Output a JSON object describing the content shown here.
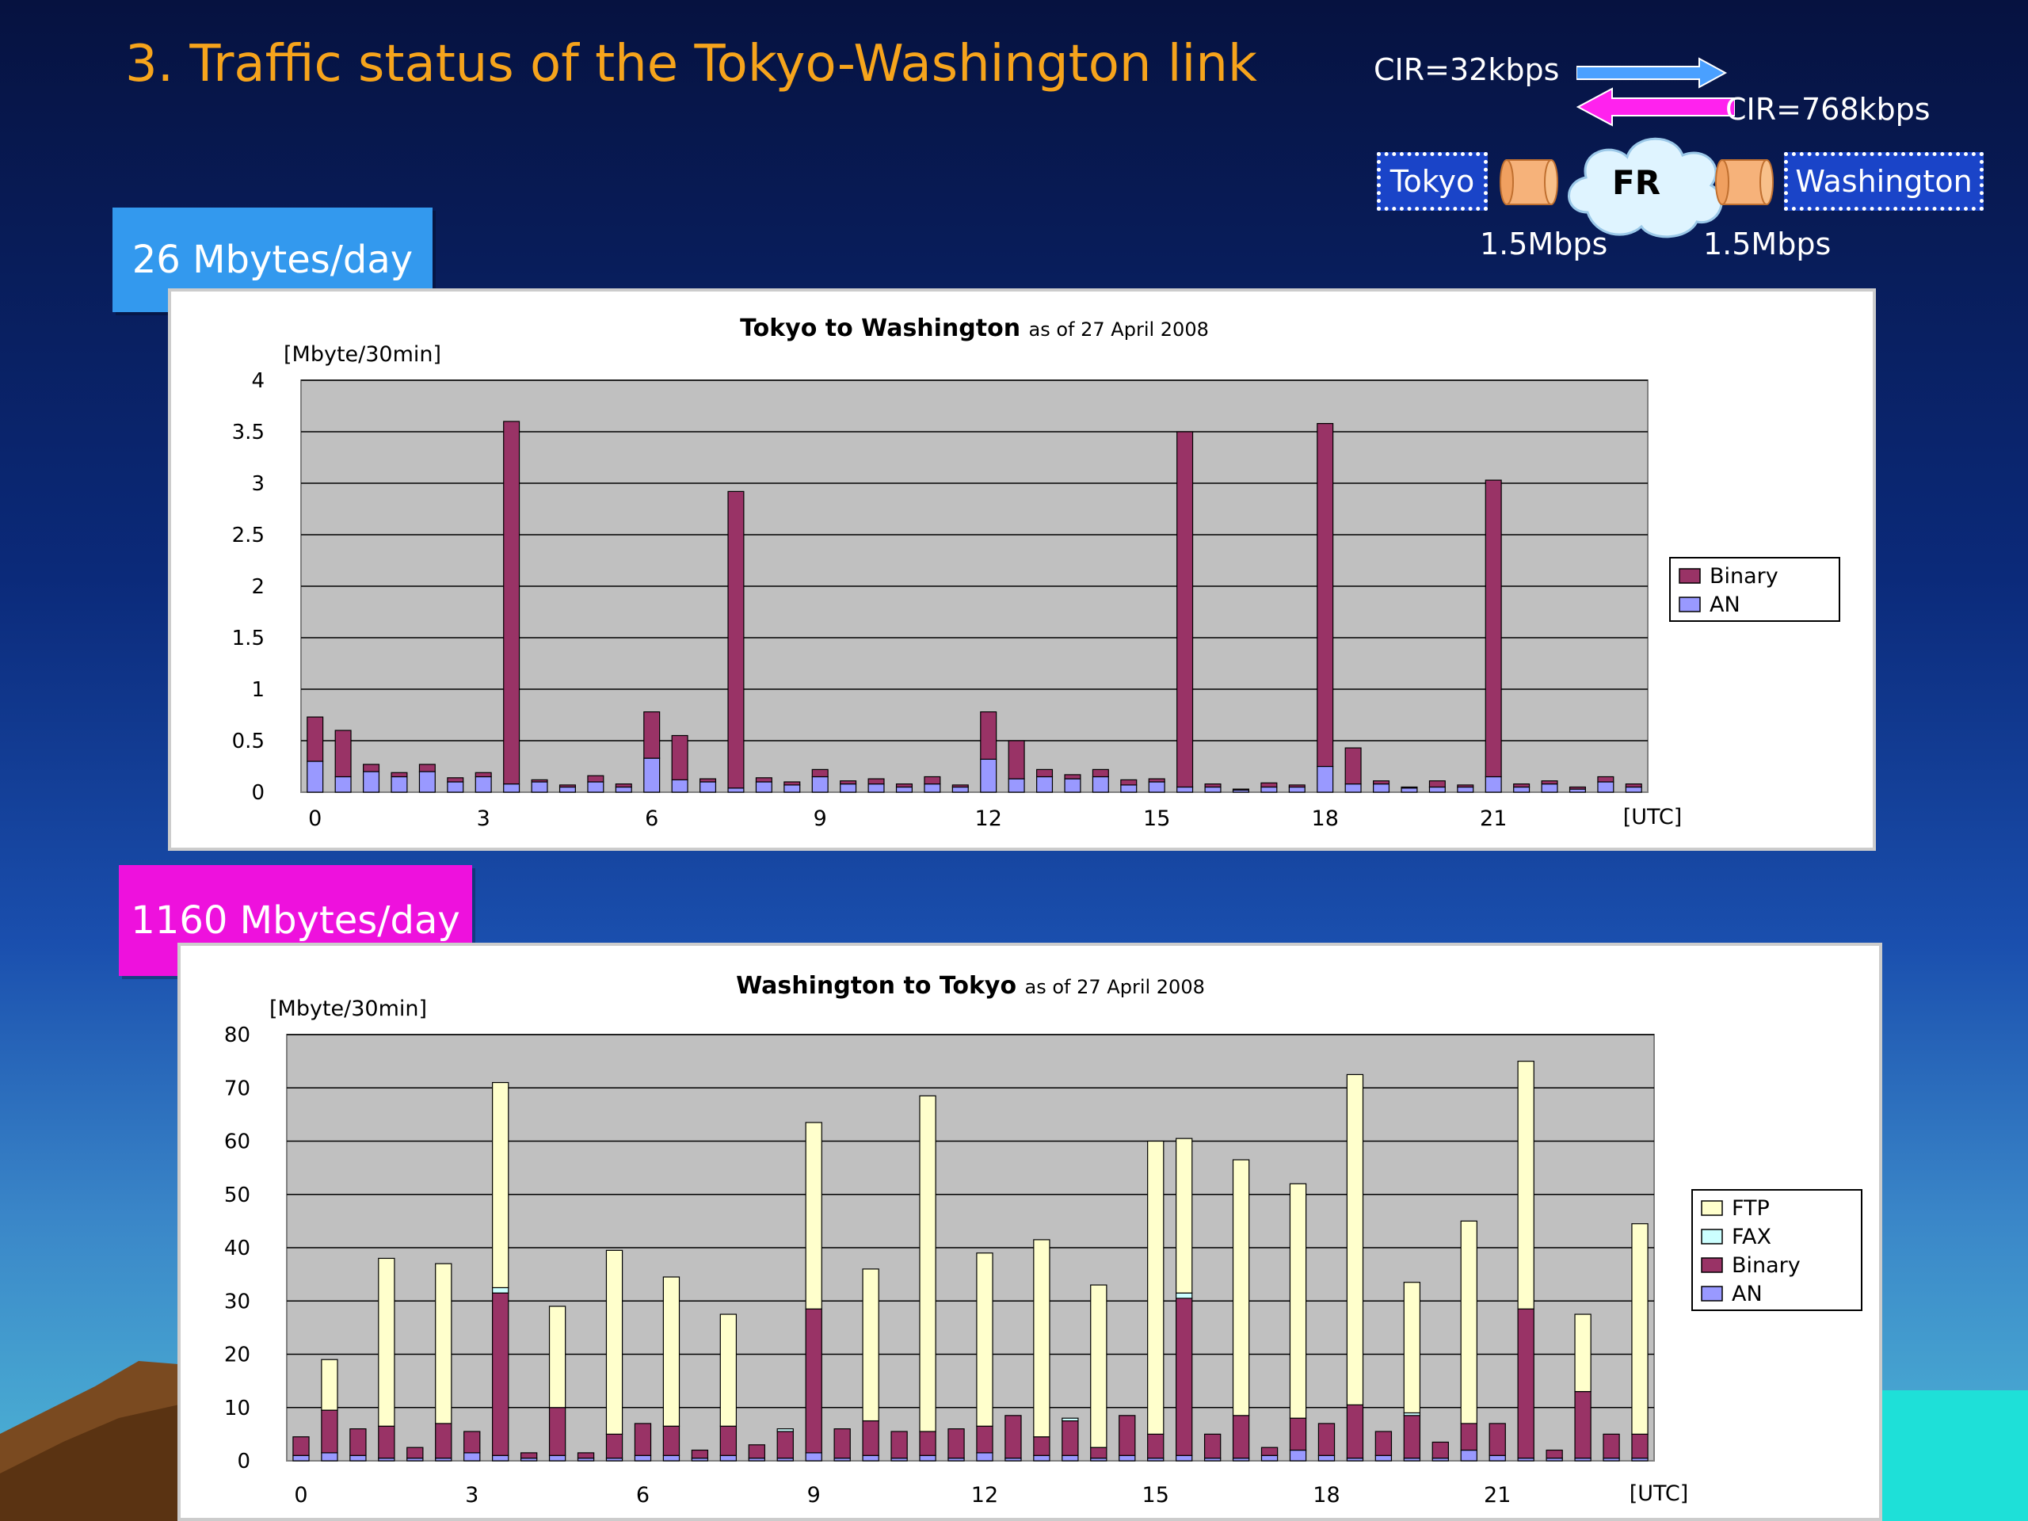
{
  "slide_title": "3.  Traffic status of the Tokyo-Washington link",
  "network": {
    "cir_up": "CIR=32kbps",
    "cir_down": "CIR=768kbps",
    "left_node": "Tokyo",
    "right_node": "Washington",
    "cloud": "FR",
    "left_speed": "1.5Mbps",
    "right_speed": "1.5Mbps",
    "colors": {
      "up_arrow": "#4aa0ff",
      "down_arrow": "#ff22ee",
      "router": "#f6b27a",
      "cloud": "#dff4ff"
    }
  },
  "tags": {
    "top": "26 Mbytes/day",
    "bottom": "1160 Mbytes/day"
  },
  "chart_data": [
    {
      "type": "bar",
      "stacked": true,
      "title": "Tokyo to Washington",
      "subtitle": "as of 27 April 2008",
      "ylabel": "[Mbyte/30min]",
      "xunit": "[UTC]",
      "ylim": [
        0,
        4
      ],
      "yticks": [
        "0",
        "0.5",
        "1",
        "1.5",
        "2",
        "2.5",
        "3",
        "3.5",
        "4"
      ],
      "xticks": [
        "0",
        "3",
        "6",
        "9",
        "12",
        "15",
        "18",
        "21"
      ],
      "grid": true,
      "legend_position": "right",
      "series": [
        {
          "name": "AN",
          "color": "#9999ff",
          "values": [
            0.3,
            0.15,
            0.2,
            0.15,
            0.2,
            0.1,
            0.15,
            0.08,
            0.1,
            0.05,
            0.1,
            0.05,
            0.33,
            0.12,
            0.1,
            0.04,
            0.1,
            0.07,
            0.15,
            0.08,
            0.08,
            0.05,
            0.08,
            0.05,
            0.32,
            0.13,
            0.15,
            0.13,
            0.15,
            0.07,
            0.1,
            0.05,
            0.05,
            0.02,
            0.05,
            0.05,
            0.25,
            0.08,
            0.08,
            0.04,
            0.05,
            0.05,
            0.15,
            0.05,
            0.08,
            0.03,
            0.1,
            0.05
          ]
        },
        {
          "name": "Binary",
          "color": "#993366",
          "values": [
            0.43,
            0.45,
            0.07,
            0.04,
            0.07,
            0.04,
            0.04,
            3.52,
            0.02,
            0.02,
            0.06,
            0.03,
            0.45,
            0.43,
            0.03,
            2.88,
            0.04,
            0.03,
            0.07,
            0.03,
            0.05,
            0.03,
            0.07,
            0.02,
            0.46,
            0.37,
            0.07,
            0.04,
            0.07,
            0.05,
            0.03,
            3.45,
            0.03,
            0.01,
            0.04,
            0.02,
            3.33,
            0.35,
            0.03,
            0.01,
            0.06,
            0.02,
            2.88,
            0.03,
            0.03,
            0.02,
            0.05,
            0.03
          ]
        }
      ]
    },
    {
      "type": "bar",
      "stacked": true,
      "title": "Washington to Tokyo",
      "subtitle": "as of 27 April 2008",
      "ylabel": "[Mbyte/30min]",
      "xunit": "[UTC]",
      "ylim": [
        0,
        80
      ],
      "yticks": [
        "0",
        "10",
        "20",
        "30",
        "40",
        "50",
        "60",
        "70",
        "80"
      ],
      "xticks": [
        "0",
        "3",
        "6",
        "9",
        "12",
        "15",
        "18",
        "21"
      ],
      "grid": true,
      "legend_position": "right",
      "series": [
        {
          "name": "AN",
          "color": "#9999ff",
          "values": [
            1,
            1.5,
            1,
            0.5,
            0.5,
            0.5,
            1.5,
            1,
            0.5,
            1,
            0.5,
            0.5,
            1,
            1,
            0.5,
            1,
            0.5,
            0.5,
            1.5,
            0.5,
            1,
            0.5,
            1,
            0.5,
            1.5,
            0.5,
            1,
            1,
            0.5,
            1,
            0.5,
            1,
            0.5,
            0.5,
            1,
            2,
            1,
            0.5,
            1,
            0.5,
            0.5,
            2,
            1,
            0.5,
            0.5,
            0.5,
            0.5,
            0.5
          ]
        },
        {
          "name": "Binary",
          "color": "#993366",
          "values": [
            3.5,
            8,
            5,
            6,
            2,
            6.5,
            4,
            30.5,
            1,
            9,
            1,
            4.5,
            6,
            5.5,
            1.5,
            5.5,
            2.5,
            5,
            27,
            5.5,
            6.5,
            5,
            4.5,
            5.5,
            5,
            8,
            3.5,
            6.5,
            2,
            7.5,
            4.5,
            29.5,
            4.5,
            8,
            1.5,
            6,
            6,
            10,
            4.5,
            8,
            3,
            5,
            6,
            28,
            1.5,
            12.5,
            4.5,
            4.5
          ]
        },
        {
          "name": "FAX",
          "color": "#ccffff",
          "values": [
            0,
            0,
            0,
            0,
            0,
            0,
            0,
            1,
            0,
            0,
            0,
            0,
            0,
            0,
            0,
            0,
            0,
            0.5,
            0,
            0,
            0,
            0,
            0,
            0,
            0,
            0,
            0,
            0.5,
            0,
            0,
            0,
            1,
            0,
            0,
            0,
            0,
            0,
            0,
            0,
            0.5,
            0,
            0,
            0,
            0,
            0,
            0,
            0,
            0
          ]
        },
        {
          "name": "FTP",
          "color": "#ffffcc",
          "values": [
            0,
            9.5,
            0,
            31.5,
            0,
            30,
            0,
            38.5,
            0,
            19,
            0,
            34.5,
            0,
            28,
            0,
            21,
            0,
            0,
            35,
            0,
            28.5,
            0,
            63,
            0,
            32.5,
            0,
            37,
            0,
            30.5,
            0,
            55,
            29,
            0,
            48,
            0,
            44,
            0,
            62,
            0,
            24.5,
            0,
            38,
            0,
            46.5,
            0,
            14.5,
            0,
            39.5
          ]
        }
      ]
    }
  ]
}
